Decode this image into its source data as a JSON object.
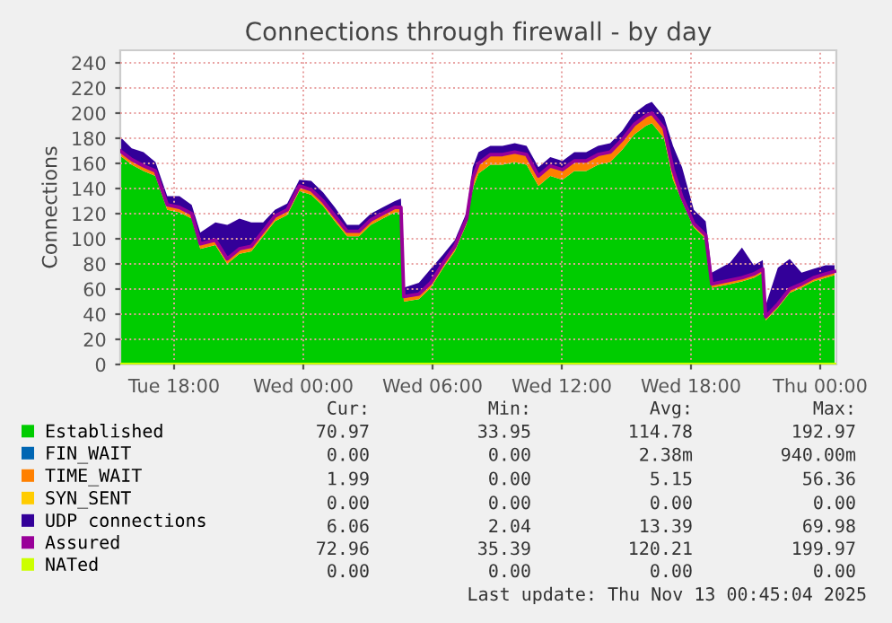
{
  "chart_data": {
    "type": "area",
    "stacked": true,
    "title": "Connections through firewall - by day",
    "ylabel": "Connections",
    "x": [
      "2025-11-11T15:30",
      "2025-11-11T16:02",
      "2025-11-11T16:35",
      "2025-11-11T17:08",
      "2025-11-11T17:41",
      "2025-11-11T18:15",
      "2025-11-11T18:49",
      "2025-11-11T19:13",
      "2025-11-11T19:55",
      "2025-11-11T20:28",
      "2025-11-11T21:02",
      "2025-11-11T21:35",
      "2025-11-11T22:08",
      "2025-11-11T22:41",
      "2025-11-11T23:15",
      "2025-11-11T23:49",
      "2025-11-12T00:22",
      "2025-11-12T00:55",
      "2025-11-12T01:28",
      "2025-11-12T02:02",
      "2025-11-12T02:35",
      "2025-11-12T03:08",
      "2025-11-12T03:41",
      "2025-11-12T04:15",
      "2025-11-12T04:32",
      "2025-11-12T04:40",
      "2025-11-12T05:22",
      "2025-11-12T05:55",
      "2025-11-12T06:28",
      "2025-11-12T07:02",
      "2025-11-12T07:35",
      "2025-11-12T07:52",
      "2025-11-12T08:08",
      "2025-11-12T08:41",
      "2025-11-12T09:15",
      "2025-11-12T09:49",
      "2025-11-12T10:22",
      "2025-11-12T10:55",
      "2025-11-12T11:28",
      "2025-11-12T12:02",
      "2025-11-12T12:35",
      "2025-11-12T13:08",
      "2025-11-12T13:41",
      "2025-11-12T14:15",
      "2025-11-12T14:49",
      "2025-11-12T15:22",
      "2025-11-12T15:55",
      "2025-11-12T16:11",
      "2025-11-12T16:45",
      "2025-11-12T17:10",
      "2025-11-12T17:35",
      "2025-11-12T18:08",
      "2025-11-12T18:41",
      "2025-11-12T18:58",
      "2025-11-12T19:49",
      "2025-11-12T20:22",
      "2025-11-12T20:55",
      "2025-11-12T21:20",
      "2025-11-12T21:28",
      "2025-11-12T22:02",
      "2025-11-12T22:35",
      "2025-11-12T23:08",
      "2025-11-12T23:41",
      "2025-11-13T00:15",
      "2025-11-13T00:40"
    ],
    "series": [
      {
        "name": "Established",
        "color": "#00cc00",
        "values": [
          166,
          159,
          154,
          150,
          123,
          121,
          116,
          92,
          95,
          80,
          88,
          90,
          102,
          114,
          119,
          138,
          135,
          126,
          114,
          102,
          102,
          111,
          116,
          121,
          121,
          50,
          52,
          61,
          76,
          90,
          112,
          140,
          152,
          159,
          159,
          161,
          159,
          142,
          150,
          147,
          154,
          154,
          159,
          161,
          171,
          183,
          190,
          192,
          180,
          147,
          130,
          109,
          100,
          61,
          64,
          66,
          69,
          73,
          35,
          45,
          57,
          61,
          66,
          69,
          71
        ]
      },
      {
        "name": "FIN_WAIT",
        "color": "#0066b3",
        "values": [
          null,
          null,
          null,
          null,
          null,
          null,
          null,
          null,
          null,
          null,
          null,
          null,
          null,
          null,
          null,
          null,
          null,
          null,
          null,
          null,
          null,
          null,
          null,
          null,
          null,
          null,
          null,
          null,
          null,
          null,
          null,
          null,
          null,
          null,
          null,
          null,
          null,
          null,
          null,
          null,
          null,
          null,
          null,
          null,
          null,
          null,
          null,
          null,
          null,
          null,
          null,
          null,
          null,
          null,
          null,
          null,
          null,
          null,
          null,
          null,
          null,
          null,
          null,
          null,
          null
        ]
      },
      {
        "name": "TIME_WAIT",
        "color": "#ff8000",
        "values": [
          3,
          3,
          3,
          3,
          3,
          3,
          3,
          3,
          3,
          3,
          3,
          3,
          3,
          3,
          3,
          3,
          3,
          3,
          3,
          3,
          3,
          3,
          3,
          3,
          3,
          3,
          3,
          3,
          3,
          3,
          3,
          7,
          7,
          7,
          7,
          7,
          7,
          7,
          7,
          7,
          7,
          7,
          7,
          7,
          7,
          7,
          7,
          7,
          7,
          7,
          2,
          2,
          2,
          2,
          2,
          2,
          2,
          2,
          2,
          2,
          2,
          2,
          2,
          2,
          2
        ]
      },
      {
        "name": "SYN_SENT",
        "color": "#ffcc00",
        "values": [
          null,
          null,
          null,
          null,
          null,
          null,
          null,
          null,
          null,
          null,
          null,
          null,
          null,
          null,
          null,
          null,
          null,
          null,
          null,
          null,
          null,
          null,
          null,
          null,
          null,
          null,
          null,
          null,
          null,
          null,
          null,
          null,
          null,
          null,
          null,
          null,
          null,
          null,
          null,
          null,
          null,
          null,
          null,
          null,
          null,
          null,
          null,
          null,
          null,
          null,
          null,
          null,
          null,
          null,
          null,
          null,
          null,
          null,
          null,
          null,
          null,
          null,
          null,
          null,
          null
        ]
      },
      {
        "name": "UDP connections",
        "color": "#330099",
        "values": [
          12,
          10,
          12,
          8,
          8,
          10,
          8,
          10,
          15,
          28,
          25,
          20,
          8,
          6,
          6,
          6,
          8,
          8,
          8,
          6,
          6,
          6,
          6,
          6,
          8,
          8,
          10,
          12,
          8,
          6,
          6,
          10,
          10,
          8,
          8,
          8,
          8,
          8,
          8,
          8,
          8,
          8,
          8,
          8,
          8,
          10,
          10,
          10,
          10,
          20,
          25,
          12,
          12,
          10,
          15,
          25,
          8,
          8,
          10,
          30,
          25,
          10,
          8,
          8,
          6
        ]
      },
      {
        "name": "Assured",
        "type": "line",
        "color": "#990099",
        "values": [
          170,
          163,
          158,
          154,
          127,
          125,
          120,
          96,
          99,
          84,
          92,
          94,
          106,
          118,
          123,
          142,
          139,
          130,
          118,
          106,
          106,
          115,
          120,
          125,
          125,
          54,
          56,
          65,
          80,
          94,
          116,
          148,
          160,
          167,
          167,
          169,
          167,
          150,
          158,
          155,
          162,
          162,
          167,
          169,
          179,
          191,
          198,
          200,
          188,
          155,
          133,
          112,
          103,
          64,
          67,
          69,
          72,
          76,
          38,
          48,
          60,
          64,
          69,
          72,
          74
        ]
      },
      {
        "name": "NATed",
        "type": "line",
        "color": "#ccff00",
        "values": [
          0,
          0,
          0,
          0,
          0,
          0,
          0,
          0,
          0,
          0,
          0,
          0,
          0,
          0,
          0,
          0,
          0,
          0,
          0,
          0,
          0,
          0,
          0,
          0,
          0,
          0,
          0,
          0,
          0,
          0,
          0,
          0,
          0,
          0,
          0,
          0,
          0,
          0,
          0,
          0,
          0,
          0,
          0,
          0,
          0,
          0,
          0,
          0,
          0,
          0,
          0,
          0,
          0,
          0,
          0,
          0,
          0,
          0,
          0,
          0,
          0,
          0,
          0,
          0,
          0
        ]
      }
    ],
    "xlim": [
      "2025-11-11T15:30",
      "2025-11-13T00:45"
    ],
    "xticks": [
      {
        "value": "2025-11-11T18:00",
        "label": "Tue 18:00"
      },
      {
        "value": "2025-11-12T00:00",
        "label": "Wed 00:00"
      },
      {
        "value": "2025-11-12T06:00",
        "label": "Wed 06:00"
      },
      {
        "value": "2025-11-12T12:00",
        "label": "Wed 12:00"
      },
      {
        "value": "2025-11-12T18:00",
        "label": "Wed 18:00"
      },
      {
        "value": "2025-11-13T00:00",
        "label": "Thu 00:00"
      }
    ],
    "ylim": [
      0,
      250
    ],
    "yticks": [
      0,
      20,
      40,
      60,
      80,
      100,
      120,
      140,
      160,
      180,
      200,
      220,
      240
    ],
    "grid": true,
    "legend": "bottom",
    "annotations": [
      "Cur:",
      "Min:",
      "Avg:",
      "Max:",
      "70.97",
      "33.95",
      "114.78",
      "192.97",
      "0.00",
      "0.00",
      "2.38m",
      "940.00m",
      "1.99",
      "0.00",
      "5.15",
      "56.36",
      "0.00",
      "0.00",
      "0.00",
      "0.00",
      "6.06",
      "2.04",
      "13.39",
      "69.98",
      "72.96",
      "35.39",
      "120.21",
      "199.97",
      "0.00",
      "0.00",
      "0.00",
      "0.00",
      "Last update: Thu Nov 13 00:45:04 2025"
    ]
  }
}
